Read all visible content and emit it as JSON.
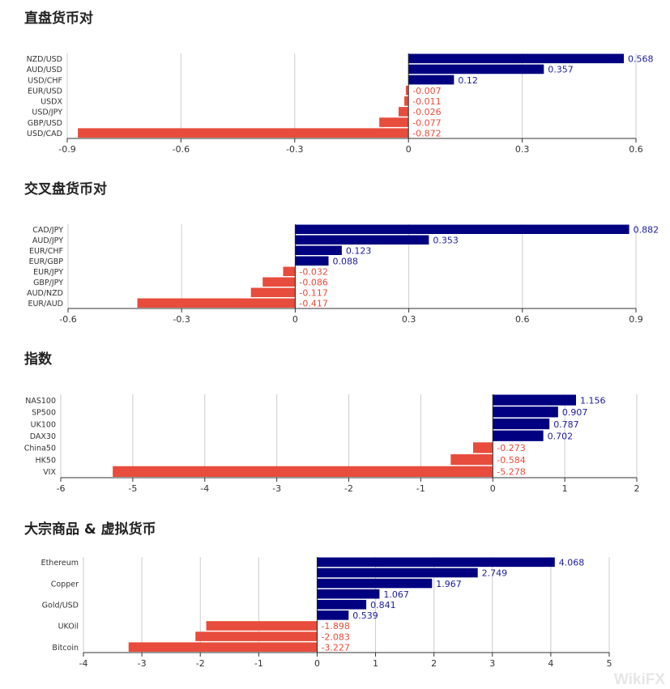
{
  "colors": {
    "positive": "#000080",
    "negative": "#e74c3c",
    "positive_label": "#1c1c9c",
    "negative_label": "#e74c3c"
  },
  "watermark": "WikiFX",
  "chart_data": [
    {
      "type": "bar",
      "orientation": "horizontal",
      "title": "直盘货币对",
      "categories": [
        "NZD/USD",
        "AUD/USD",
        "USD/CHF",
        "EUR/USD",
        "USDX",
        "USD/JPY",
        "GBP/USD",
        "USD/CAD"
      ],
      "values": [
        0.568,
        0.357,
        0.12,
        -0.007,
        -0.011,
        -0.026,
        -0.077,
        -0.872
      ],
      "labels": [
        "0.568",
        "0.357",
        "0.12",
        "-0.007",
        "-0.011",
        "-0.026",
        "-0.077",
        "-0.872"
      ],
      "xlim": [
        -0.9,
        0.6
      ],
      "ticks": [
        "-0.9",
        "-0.6",
        "-0.3",
        "0",
        "0.3",
        "0.6"
      ],
      "tick_values": [
        -0.9,
        -0.6,
        -0.3,
        0,
        0.3,
        0.6
      ],
      "grid": true
    },
    {
      "type": "bar",
      "orientation": "horizontal",
      "title": "交叉盘货币对",
      "categories": [
        "CAD/JPY",
        "AUD/JPY",
        "EUR/CHF",
        "EUR/GBP",
        "EUR/JPY",
        "GBP/JPY",
        "AUD/NZD",
        "EUR/AUD"
      ],
      "values": [
        0.882,
        0.353,
        0.123,
        0.088,
        -0.032,
        -0.086,
        -0.117,
        -0.417
      ],
      "labels": [
        "0.882",
        "0.353",
        "0.123",
        "0.088",
        "-0.032",
        "-0.086",
        "-0.117",
        "-0.417"
      ],
      "xlim": [
        -0.6,
        0.9
      ],
      "ticks": [
        "-0.6",
        "-0.3",
        "0",
        "0.3",
        "0.6",
        "0.9"
      ],
      "tick_values": [
        -0.6,
        -0.3,
        0,
        0.3,
        0.6,
        0.9
      ],
      "grid": true
    },
    {
      "type": "bar",
      "orientation": "horizontal",
      "title": "指数",
      "categories": [
        "NAS100",
        "SP500",
        "UK100",
        "DAX30",
        "China50",
        "HK50",
        "VIX"
      ],
      "values": [
        1.156,
        0.907,
        0.787,
        0.702,
        -0.273,
        -0.584,
        -5.278
      ],
      "labels": [
        "1.156",
        "0.907",
        "0.787",
        "0.702",
        "-0.273",
        "-0.584",
        "-5.278"
      ],
      "xlim": [
        -6,
        2
      ],
      "ticks": [
        "-6",
        "-5",
        "-4",
        "-3",
        "-2",
        "-1",
        "0",
        "1",
        "2"
      ],
      "tick_values": [
        -6,
        -5,
        -4,
        -3,
        -2,
        -1,
        0,
        1,
        2
      ],
      "grid": true
    },
    {
      "type": "bar",
      "orientation": "horizontal",
      "title": "大宗商品 & 虚拟货币",
      "categories": [
        "Ethereum",
        "",
        "Copper",
        "",
        "Gold/USD",
        "",
        "UKOil",
        "",
        "Bitcoin"
      ],
      "values": [
        4.068,
        2.749,
        1.967,
        1.067,
        0.841,
        0.539,
        -1.898,
        -2.083,
        -3.227
      ],
      "labels": [
        "4.068",
        "2.749",
        "1.967",
        "1.067",
        "0.841",
        "0.539",
        "-1.898",
        "-2.083",
        "-3.227"
      ],
      "xlim": [
        -4,
        5
      ],
      "ticks": [
        "-4",
        "-3",
        "-2",
        "-1",
        "0",
        "1",
        "2",
        "3",
        "4",
        "5"
      ],
      "tick_values": [
        -4,
        -3,
        -2,
        -1,
        0,
        1,
        2,
        3,
        4,
        5
      ],
      "grid": true
    }
  ]
}
